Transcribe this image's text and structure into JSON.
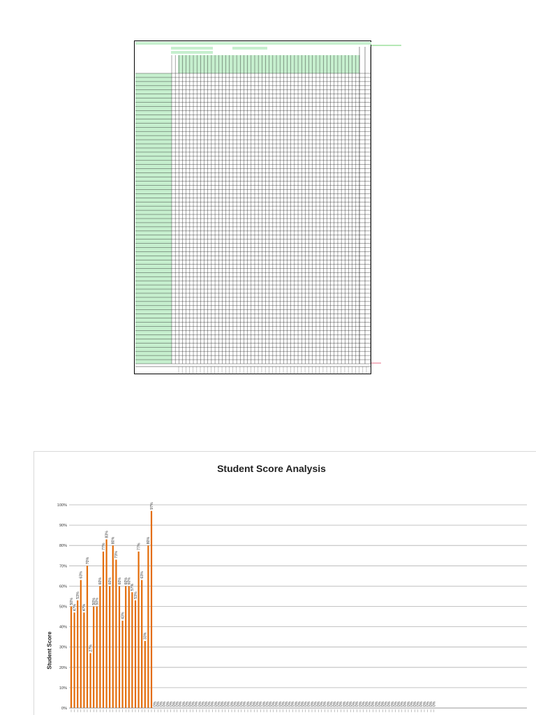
{
  "colors": {
    "bar": "#e36c09",
    "sheet_green": "#c6efce",
    "grid": "#b0b0b0",
    "pink_line": "#f4b6c2",
    "green_line": "#b6e8b6"
  },
  "chart_data": {
    "type": "bar",
    "title": "Student Score Analysis",
    "ylabel": "Student Score",
    "xlabel": "",
    "ylim": [
      0,
      100
    ],
    "y_ticks": [
      "0%",
      "10%",
      "20%",
      "30%",
      "40%",
      "50%",
      "60%",
      "70%",
      "80%",
      "90%",
      "100%"
    ],
    "values": [
      50,
      47,
      53,
      63,
      47,
      70,
      27,
      50,
      50,
      60,
      77,
      83,
      60,
      80,
      73,
      60,
      43,
      60,
      60,
      57,
      53,
      77,
      63,
      33,
      80,
      97,
      0,
      0,
      0,
      0,
      0,
      0,
      0,
      0,
      0,
      0,
      0,
      0,
      0,
      0,
      0,
      0,
      0,
      0,
      0,
      0,
      0,
      0,
      0,
      0,
      0,
      0,
      0,
      0,
      0,
      0,
      0,
      0,
      0,
      0,
      0,
      0,
      0,
      0,
      0,
      0,
      0,
      0,
      0,
      0,
      0,
      0,
      0,
      0,
      0,
      0,
      0,
      0,
      0,
      0,
      0,
      0,
      0,
      0,
      0,
      0,
      0,
      0,
      0,
      0,
      0,
      0,
      0,
      0,
      0,
      0,
      0,
      0,
      0,
      0,
      0,
      0,
      0,
      0,
      0,
      0,
      0,
      0,
      0,
      0,
      0,
      0,
      0,
      0
    ],
    "data_labels": [
      "50%",
      "47%",
      "53%",
      "63%",
      "47%",
      "70%",
      "27%",
      "50%",
      "50%",
      "60%",
      "77%",
      "83%",
      "60%",
      "80%",
      "73%",
      "60%",
      "43%",
      "60%",
      "60%",
      "57%",
      "53%",
      "77%",
      "63%",
      "33%",
      "80%",
      "97%",
      "0%",
      "0%",
      "0%",
      "0%",
      "0%",
      "0%",
      "0%",
      "0%",
      "0%",
      "0%",
      "0%",
      "0%",
      "0%",
      "0%",
      "0%",
      "0%",
      "0%",
      "0%",
      "0%",
      "0%",
      "0%",
      "0%",
      "0%",
      "0%",
      "0%",
      "0%",
      "0%",
      "0%",
      "0%",
      "0%",
      "0%",
      "0%",
      "0%",
      "0%",
      "0%",
      "0%",
      "0%",
      "0%",
      "0%",
      "0%",
      "0%",
      "0%",
      "0%",
      "0%",
      "0%",
      "0%",
      "0%",
      "0%",
      "0%",
      "0%",
      "0%",
      "0%",
      "0%",
      "0%",
      "0%",
      "0%",
      "0%",
      "0%",
      "0%",
      "0%",
      "0%",
      "0%",
      "0%",
      "0%",
      "0%",
      "0%",
      "0%",
      "0%",
      "0%",
      "0%",
      "0%",
      "0%",
      "0%",
      "0%",
      "0%",
      "0%",
      "0%",
      "0%",
      "0%",
      "0%",
      "0%",
      "0%",
      "0%",
      "0%",
      "0%",
      "0%",
      "0%",
      "0%"
    ],
    "grid": true,
    "legend": "none"
  }
}
